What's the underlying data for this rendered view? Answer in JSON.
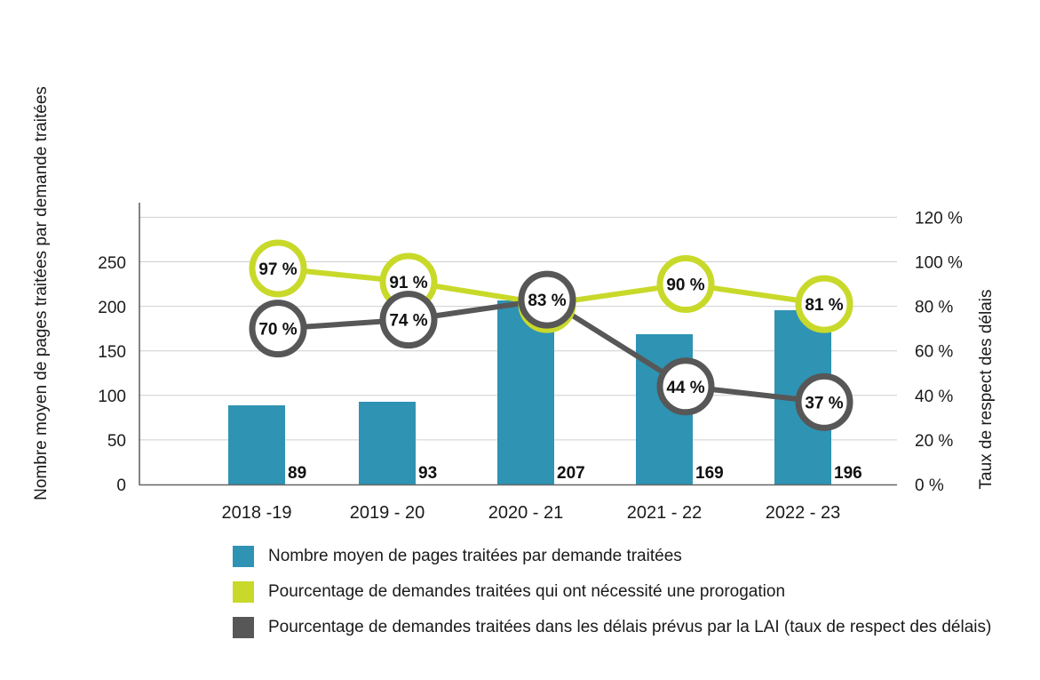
{
  "chart_data": {
    "type": "bar+line",
    "categories": [
      "2018 -19",
      "2019 - 20",
      "2020 - 21",
      "2021 - 22",
      "2022 - 23"
    ],
    "bars": {
      "name": "Nombre moyen de pages traitées par demande traitées",
      "values": [
        89,
        93,
        207,
        169,
        196
      ],
      "labels": [
        "89",
        "93",
        "207",
        "169",
        "196"
      ],
      "color": "#2f93b3",
      "axis": "left"
    },
    "series": [
      {
        "name": "Pourcentage de demandes traitées qui ont nécessité une prorogation",
        "values": [
          97,
          91,
          81,
          90,
          81
        ],
        "labels": [
          "97 %",
          "91 %",
          "81 %",
          "90 %",
          "81 %"
        ],
        "color": "#c8d92a",
        "axis": "right"
      },
      {
        "name": "Pourcentage de demandes traitées dans les délais prévus par la LAI (taux de respect des délais)",
        "values": [
          70,
          74,
          83,
          44,
          37
        ],
        "labels": [
          "70 %",
          "74 %",
          "83 %",
          "44 %",
          "37 %"
        ],
        "color": "#575757",
        "axis": "right"
      }
    ],
    "left_axis": {
      "label": "Nombre moyen de pages traitées par demande traitées",
      "ylim": [
        0,
        250
      ],
      "ticks": [
        0,
        50,
        100,
        150,
        200,
        250
      ],
      "tick_labels": [
        "0",
        "50",
        "100",
        "150",
        "200",
        "250"
      ]
    },
    "right_axis": {
      "label": "Taux de respect des délais",
      "ticks": [
        "0 %",
        "20 %",
        "40 %",
        "60 %",
        "80 %",
        "100 %",
        "120 %"
      ]
    },
    "grid": "horizontal",
    "legend_position": "bottom"
  }
}
